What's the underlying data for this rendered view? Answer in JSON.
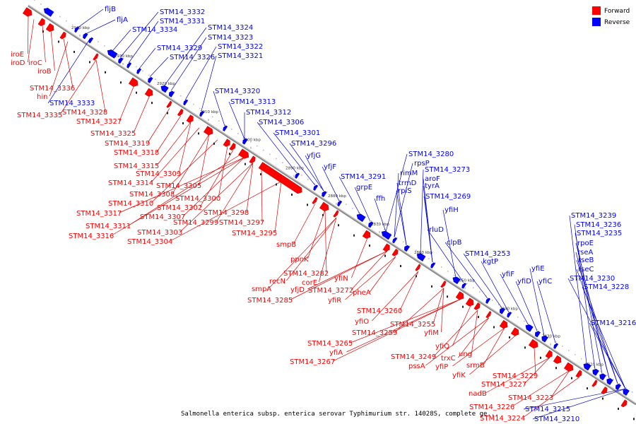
{
  "caption": "Salmonella enterica subsp. enterica serovar Typhimurium str. 14028S, complete ge...",
  "legend": [
    {
      "label": "Forward",
      "color": "#ff0000"
    },
    {
      "label": "Reverse",
      "color": "#0000ff"
    }
  ],
  "colors": {
    "forward": "#ff0000",
    "reverse": "#0000ff",
    "backbone": "#888888",
    "forward_line": "#dd0000",
    "reverse_line": "#0000cc"
  },
  "ticks": [
    "2940 kbp",
    "2930 kbp",
    "2920 kbp",
    "2910 kbp",
    "2900 kbp",
    "2890 kbp",
    "2880 kbp",
    "2870 kbp",
    "2860 kbp",
    "2850 kbp",
    "2840 kbp",
    "2830 kbp",
    "2820 kbp"
  ],
  "reverse_labels": [
    "fljB",
    "fljA",
    "STM14_3332",
    "STM14_3331",
    "STM14_3334",
    "STM14_3324",
    "STM14_3323",
    "STM14_3322",
    "STM14_3329",
    "STM14_3321",
    "STM14_3326",
    "STM14_3320",
    "STM14_3313",
    "STM14_3312",
    "STM14_3306",
    "STM14_3301",
    "STM14_3296",
    "yfjG",
    "yfjF",
    "STM14_3291",
    "grpE",
    "ffh",
    "STM14_3280",
    "rpsP",
    "rimM",
    "trmD",
    "rplS",
    "STM14_3273",
    "aroF",
    "tyrA",
    "STM14_3269",
    "yfiH",
    "rluD",
    "clpB",
    "STM14_3253",
    "kgtP",
    "yfiF",
    "yfiD",
    "yfiE",
    "yfiC",
    "STM14_3239",
    "STM14_3236",
    "STM14_3235",
    "rpoE",
    "rseA",
    "rseB",
    "rseC",
    "STM14_3230",
    "STM14_3228",
    "STM14_3216",
    "STM14_3215",
    "STM14_3210",
    "STM14_3333"
  ],
  "forward_labels": [
    "iroE",
    "iroD",
    "iroC",
    "iroB",
    "STM14_3336",
    "hin",
    "STM14_3335",
    "STM14_3328",
    "STM14_3327",
    "STM14_3325",
    "STM14_3319",
    "STM14_3318",
    "STM14_3315",
    "STM14_3309",
    "STM14_3314",
    "STM14_3305",
    "STM14_3308",
    "STM14_3300",
    "STM14_3310",
    "STM14_3302",
    "STM14_3317",
    "STM14_3307",
    "STM14_3298",
    "STM14_3299",
    "STM14_3311",
    "STM14_3297",
    "STM14_3303",
    "STM14_3316",
    "STM14_3304",
    "STM14_3295",
    "smpB",
    "ppnK",
    "STM14_3282",
    "recN",
    "corE",
    "yfiN",
    "smpA",
    "yfjD",
    "STM14_3272",
    "pheA",
    "STM14_3285",
    "yfiR",
    "STM14_3260",
    "yfiO",
    "STM14_3255",
    "STM14_3259",
    "yfiM",
    "STM14_3265",
    "yfiQ",
    "yfiA",
    "ung",
    "STM14_3249",
    "trxC",
    "STM14_3267",
    "pssA",
    "yfiP",
    "yfiK",
    "srmB",
    "STM14_3229",
    "STM14_3227",
    "nadB",
    "STM14_3223",
    "STM14_3226",
    "STM14_3224"
  ]
}
